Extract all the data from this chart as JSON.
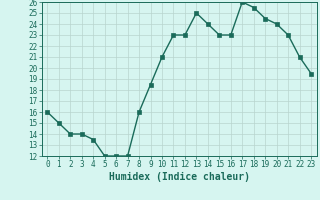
{
  "x": [
    0,
    1,
    2,
    3,
    4,
    5,
    6,
    7,
    8,
    9,
    10,
    11,
    12,
    13,
    14,
    15,
    16,
    17,
    18,
    19,
    20,
    21,
    22,
    23
  ],
  "y": [
    16,
    15,
    14,
    14,
    13.5,
    12,
    12,
    12,
    16,
    18.5,
    21,
    23,
    23,
    25,
    24,
    23,
    23,
    26,
    25.5,
    24.5,
    24,
    23,
    21,
    19.5
  ],
  "xlabel": "Humidex (Indice chaleur)",
  "xlim": [
    -0.5,
    23.5
  ],
  "ylim": [
    12,
    26
  ],
  "yticks": [
    12,
    13,
    14,
    15,
    16,
    17,
    18,
    19,
    20,
    21,
    22,
    23,
    24,
    25,
    26
  ],
  "xticks": [
    0,
    1,
    2,
    3,
    4,
    5,
    6,
    7,
    8,
    9,
    10,
    11,
    12,
    13,
    14,
    15,
    16,
    17,
    18,
    19,
    20,
    21,
    22,
    23
  ],
  "line_color": "#1a6b5a",
  "bg_color": "#d6f5f0",
  "grid_color": "#b8d4ce",
  "markersize": 2.5,
  "linewidth": 1.0,
  "xlabel_fontsize": 7,
  "tick_fontsize": 5.5
}
